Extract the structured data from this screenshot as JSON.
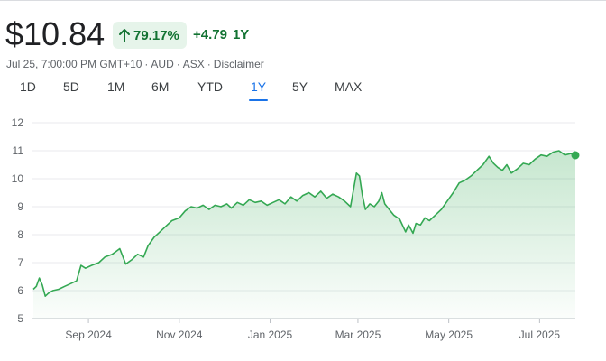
{
  "quote": {
    "price": "$10.84",
    "percent_change": "79.17%",
    "abs_change": "+4.79",
    "period": "1Y",
    "timestamp": "Jul 25, 7:00:00 PM GMT+10",
    "currency": "AUD",
    "exchange": "ASX",
    "disclaimer": "Disclaimer"
  },
  "colors": {
    "up": "#137333",
    "line": "#34a853",
    "accent": "#1a73e8"
  },
  "ranges": [
    {
      "label": "1D",
      "active": false
    },
    {
      "label": "5D",
      "active": false
    },
    {
      "label": "1M",
      "active": false
    },
    {
      "label": "6M",
      "active": false
    },
    {
      "label": "YTD",
      "active": false
    },
    {
      "label": "1Y",
      "active": true
    },
    {
      "label": "5Y",
      "active": false
    },
    {
      "label": "MAX",
      "active": false
    }
  ],
  "chart_data": {
    "type": "area",
    "ylim": [
      5,
      12
    ],
    "y_ticks": [
      5,
      6,
      7,
      8,
      9,
      10,
      11,
      12
    ],
    "grid": true,
    "x_ticks": [
      {
        "label": "Sep 2024",
        "date": "2024-09-01"
      },
      {
        "label": "Nov 2024",
        "date": "2024-11-01"
      },
      {
        "label": "Jan 2025",
        "date": "2025-01-01"
      },
      {
        "label": "Mar 2025",
        "date": "2025-03-01"
      },
      {
        "label": "May 2025",
        "date": "2025-05-01"
      },
      {
        "label": "Jul 2025",
        "date": "2025-07-01"
      }
    ],
    "series": [
      {
        "points": [
          [
            "2024-07-26",
            6.05
          ],
          [
            "2024-07-28",
            6.15
          ],
          [
            "2024-07-30",
            6.45
          ],
          [
            "2024-08-01",
            6.2
          ],
          [
            "2024-08-03",
            5.8
          ],
          [
            "2024-08-05",
            5.9
          ],
          [
            "2024-08-08",
            6.0
          ],
          [
            "2024-08-12",
            6.05
          ],
          [
            "2024-08-16",
            6.15
          ],
          [
            "2024-08-20",
            6.25
          ],
          [
            "2024-08-24",
            6.35
          ],
          [
            "2024-08-27",
            6.9
          ],
          [
            "2024-08-30",
            6.8
          ],
          [
            "2024-09-03",
            6.9
          ],
          [
            "2024-09-08",
            7.0
          ],
          [
            "2024-09-12",
            7.2
          ],
          [
            "2024-09-17",
            7.3
          ],
          [
            "2024-09-22",
            7.5
          ],
          [
            "2024-09-26",
            6.95
          ],
          [
            "2024-09-30",
            7.1
          ],
          [
            "2024-10-04",
            7.3
          ],
          [
            "2024-10-08",
            7.2
          ],
          [
            "2024-10-11",
            7.6
          ],
          [
            "2024-10-15",
            7.9
          ],
          [
            "2024-10-19",
            8.1
          ],
          [
            "2024-10-23",
            8.3
          ],
          [
            "2024-10-27",
            8.5
          ],
          [
            "2024-11-01",
            8.6
          ],
          [
            "2024-11-05",
            8.85
          ],
          [
            "2024-11-09",
            9.0
          ],
          [
            "2024-11-13",
            8.95
          ],
          [
            "2024-11-17",
            9.05
          ],
          [
            "2024-11-21",
            8.9
          ],
          [
            "2024-11-25",
            9.05
          ],
          [
            "2024-11-29",
            9.0
          ],
          [
            "2024-12-03",
            9.1
          ],
          [
            "2024-12-06",
            8.95
          ],
          [
            "2024-12-10",
            9.15
          ],
          [
            "2024-12-14",
            9.05
          ],
          [
            "2024-12-18",
            9.25
          ],
          [
            "2024-12-22",
            9.15
          ],
          [
            "2024-12-26",
            9.2
          ],
          [
            "2024-12-30",
            9.05
          ],
          [
            "2025-01-03",
            9.15
          ],
          [
            "2025-01-07",
            9.25
          ],
          [
            "2025-01-11",
            9.1
          ],
          [
            "2025-01-15",
            9.35
          ],
          [
            "2025-01-19",
            9.2
          ],
          [
            "2025-01-23",
            9.4
          ],
          [
            "2025-01-27",
            9.5
          ],
          [
            "2025-01-31",
            9.35
          ],
          [
            "2025-02-04",
            9.55
          ],
          [
            "2025-02-08",
            9.3
          ],
          [
            "2025-02-12",
            9.45
          ],
          [
            "2025-02-16",
            9.35
          ],
          [
            "2025-02-20",
            9.2
          ],
          [
            "2025-02-24",
            9.0
          ],
          [
            "2025-02-26",
            9.6
          ],
          [
            "2025-02-28",
            10.2
          ],
          [
            "2025-03-02",
            10.1
          ],
          [
            "2025-03-04",
            9.4
          ],
          [
            "2025-03-06",
            8.9
          ],
          [
            "2025-03-09",
            9.1
          ],
          [
            "2025-03-12",
            9.0
          ],
          [
            "2025-03-15",
            9.2
          ],
          [
            "2025-03-17",
            9.5
          ],
          [
            "2025-03-19",
            9.1
          ],
          [
            "2025-03-22",
            8.9
          ],
          [
            "2025-03-25",
            8.7
          ],
          [
            "2025-03-29",
            8.55
          ],
          [
            "2025-04-02",
            8.1
          ],
          [
            "2025-04-04",
            8.35
          ],
          [
            "2025-04-07",
            8.05
          ],
          [
            "2025-04-09",
            8.4
          ],
          [
            "2025-04-12",
            8.35
          ],
          [
            "2025-04-15",
            8.6
          ],
          [
            "2025-04-18",
            8.5
          ],
          [
            "2025-04-22",
            8.7
          ],
          [
            "2025-04-26",
            8.9
          ],
          [
            "2025-04-30",
            9.2
          ],
          [
            "2025-05-04",
            9.5
          ],
          [
            "2025-05-08",
            9.85
          ],
          [
            "2025-05-12",
            9.95
          ],
          [
            "2025-05-16",
            10.1
          ],
          [
            "2025-05-20",
            10.3
          ],
          [
            "2025-05-24",
            10.5
          ],
          [
            "2025-05-28",
            10.8
          ],
          [
            "2025-05-31",
            10.55
          ],
          [
            "2025-06-03",
            10.4
          ],
          [
            "2025-06-06",
            10.3
          ],
          [
            "2025-06-09",
            10.5
          ],
          [
            "2025-06-12",
            10.2
          ],
          [
            "2025-06-16",
            10.35
          ],
          [
            "2025-06-20",
            10.55
          ],
          [
            "2025-06-24",
            10.5
          ],
          [
            "2025-06-28",
            10.7
          ],
          [
            "2025-07-02",
            10.85
          ],
          [
            "2025-07-06",
            10.8
          ],
          [
            "2025-07-10",
            10.95
          ],
          [
            "2025-07-14",
            11.0
          ],
          [
            "2025-07-18",
            10.85
          ],
          [
            "2025-07-22",
            10.9
          ],
          [
            "2025-07-25",
            10.84
          ]
        ]
      }
    ]
  }
}
